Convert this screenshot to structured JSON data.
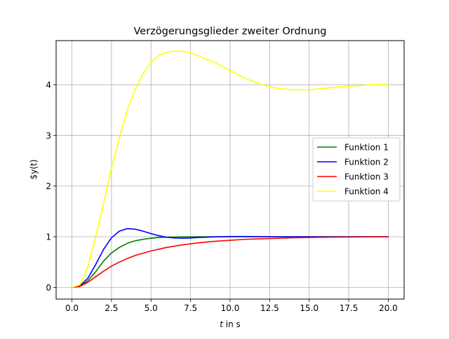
{
  "chart_data": {
    "type": "line",
    "title": "Verzögerungsglieder zweiter Ordnung",
    "xlabel_italic": "t",
    "xlabel_rest": " in s",
    "ylabel": "$y(t)",
    "xlim": [
      -1.0,
      21.0
    ],
    "ylim": [
      -0.23,
      4.87
    ],
    "xticks": [
      0.0,
      2.5,
      5.0,
      7.5,
      10.0,
      12.5,
      15.0,
      17.5,
      20.0
    ],
    "xtick_labels": [
      "0.0",
      "2.5",
      "5.0",
      "7.5",
      "10.0",
      "12.5",
      "15.0",
      "17.5",
      "20.0"
    ],
    "yticks": [
      0,
      1,
      2,
      3,
      4
    ],
    "ytick_labels": [
      "0",
      "1",
      "2",
      "3",
      "4"
    ],
    "grid": true,
    "legend_position": "center-right",
    "series": [
      {
        "name": "Funktion 1",
        "color": "#008000",
        "x": [
          0,
          0.5,
          1,
          1.5,
          2,
          2.5,
          3,
          3.5,
          4,
          4.5,
          5,
          5.5,
          6,
          6.5,
          7,
          7.5,
          8,
          9,
          10,
          11,
          12,
          14,
          16,
          18,
          20
        ],
        "y": [
          0,
          0.02,
          0.13,
          0.31,
          0.52,
          0.68,
          0.79,
          0.87,
          0.92,
          0.95,
          0.97,
          0.985,
          0.99,
          0.995,
          0.997,
          0.998,
          0.999,
          1.0,
          1.0,
          1.0,
          1.0,
          1.0,
          1.0,
          1.0,
          1.0
        ]
      },
      {
        "name": "Funktion 2",
        "color": "#0000ff",
        "x": [
          0,
          0.5,
          1,
          1.5,
          2,
          2.5,
          3,
          3.5,
          4,
          4.5,
          5,
          5.5,
          6,
          6.5,
          7,
          7.5,
          8,
          9,
          10,
          11,
          12,
          14,
          16,
          18,
          20
        ],
        "y": [
          0,
          0.03,
          0.18,
          0.45,
          0.75,
          0.98,
          1.11,
          1.16,
          1.15,
          1.11,
          1.06,
          1.02,
          0.99,
          0.975,
          0.97,
          0.975,
          0.985,
          0.998,
          1.005,
          1.004,
          1.002,
          1.0,
          1.0,
          1.0,
          1.0
        ]
      },
      {
        "name": "Funktion 3",
        "color": "#ff0000",
        "x": [
          0,
          0.5,
          1,
          1.5,
          2,
          2.5,
          3,
          3.5,
          4,
          5,
          6,
          7,
          8,
          9,
          10,
          11,
          12,
          13,
          14,
          15,
          16,
          17,
          18,
          19,
          20
        ],
        "y": [
          0,
          0.02,
          0.1,
          0.21,
          0.32,
          0.42,
          0.5,
          0.57,
          0.63,
          0.72,
          0.79,
          0.84,
          0.88,
          0.91,
          0.93,
          0.95,
          0.96,
          0.97,
          0.98,
          0.985,
          0.99,
          0.993,
          0.995,
          0.997,
          0.998
        ]
      },
      {
        "name": "Funktion 4",
        "color": "#ffff00",
        "x": [
          0,
          0.5,
          1,
          1.5,
          2,
          2.5,
          3,
          3.5,
          4,
          4.5,
          5,
          5.5,
          6,
          6.5,
          7,
          7.5,
          8,
          8.5,
          9,
          10,
          11,
          12,
          13,
          14,
          15,
          16,
          17,
          18,
          19,
          20
        ],
        "y": [
          0,
          0.05,
          0.4,
          1.0,
          1.65,
          2.35,
          2.95,
          3.5,
          3.9,
          4.22,
          4.45,
          4.58,
          4.64,
          4.66,
          4.66,
          4.63,
          4.57,
          4.5,
          4.44,
          4.28,
          4.12,
          4.0,
          3.93,
          3.9,
          3.9,
          3.93,
          3.96,
          3.98,
          4.0,
          4.01
        ]
      }
    ]
  }
}
